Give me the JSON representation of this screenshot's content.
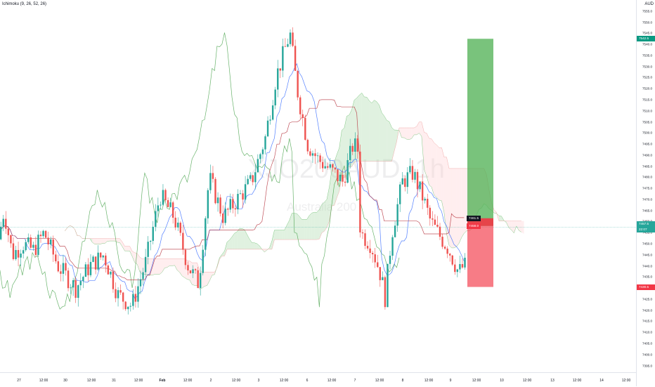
{
  "indicator": {
    "label": "Ichimoku (9, 26, 52, 26)"
  },
  "currency": "AUD",
  "watermark": {
    "symbol": "XJO200AUD, 1h",
    "name": "Australia 200"
  },
  "price_axis": {
    "ticks": [
      "7555.0",
      "7550.0",
      "7545.0",
      "7540.0",
      "7535.0",
      "7530.0",
      "7525.0",
      "7520.0",
      "7515.0",
      "7510.0",
      "7505.0",
      "7500.0",
      "7495.0",
      "7490.0",
      "7485.0",
      "7480.0",
      "7475.0",
      "7470.0",
      "7465.0",
      "7460.0",
      "7455.0",
      "7450.0",
      "7445.0",
      "7440.0",
      "7435.0",
      "7430.0",
      "7425.0",
      "7420.0",
      "7415.0",
      "7410.0",
      "7405.0",
      "7400.0",
      "7395.0"
    ]
  },
  "price_tags": {
    "target": {
      "text": "7542.5",
      "color": "#089981"
    },
    "last": {
      "text": "7457.5",
      "color": "#26a69a"
    },
    "countdown": {
      "text": "22:07",
      "color": "#26a69a"
    },
    "stop": {
      "text": "7430.5",
      "color": "#f23645"
    },
    "entry_black": {
      "text": "7461.5",
      "color": "#131722"
    },
    "entry_red": {
      "text": "7458.0",
      "color": "#f23645"
    }
  },
  "time_axis": {
    "ticks": [
      "27",
      "12:00",
      "30",
      "12:00",
      "31",
      "12:00",
      "Feb",
      "12:00",
      "2",
      "12:00",
      "3",
      "12:00",
      "6",
      "12:00",
      "7",
      "12:00",
      "8",
      "12:00",
      "9",
      "12:00",
      "10",
      "12:00",
      "13",
      "12:00",
      "14",
      "12:00"
    ]
  },
  "colors": {
    "up": "#26a69a",
    "down": "#ef5350",
    "conversion": "#2962ff",
    "base": "#b22833",
    "lagging": "#43a047",
    "cloud_up": "#a5d6a7",
    "cloud_down": "#ffcdd2",
    "profit_zone": "#4caf50",
    "loss_zone": "#f23645"
  },
  "chart_data": {
    "type": "candlestick",
    "y_range": [
      7392,
      7560
    ],
    "position": {
      "entry": 7458.0,
      "target": 7542.5,
      "stop": 7430.5
    },
    "last_price": 7457.5
  }
}
